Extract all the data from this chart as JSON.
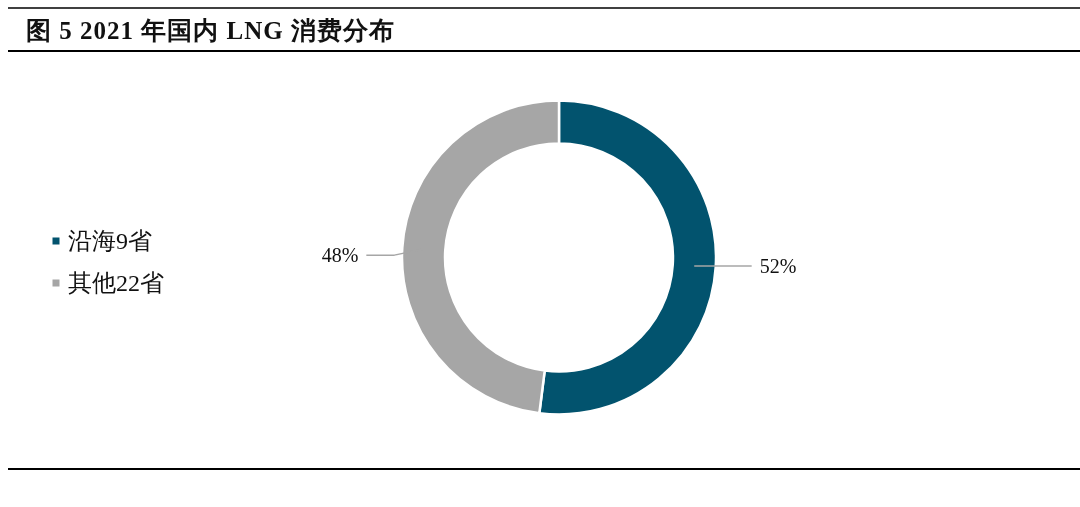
{
  "chart_data": {
    "type": "donut",
    "title": "图 5 2021 年国内 LNG 消费分布",
    "categories": [
      "沿海9省",
      "其他22省"
    ],
    "values": [
      52,
      48
    ],
    "colors": [
      "#02536e",
      "#a6a6a6"
    ],
    "value_labels": [
      "52%",
      "48%"
    ],
    "legend": "left"
  }
}
